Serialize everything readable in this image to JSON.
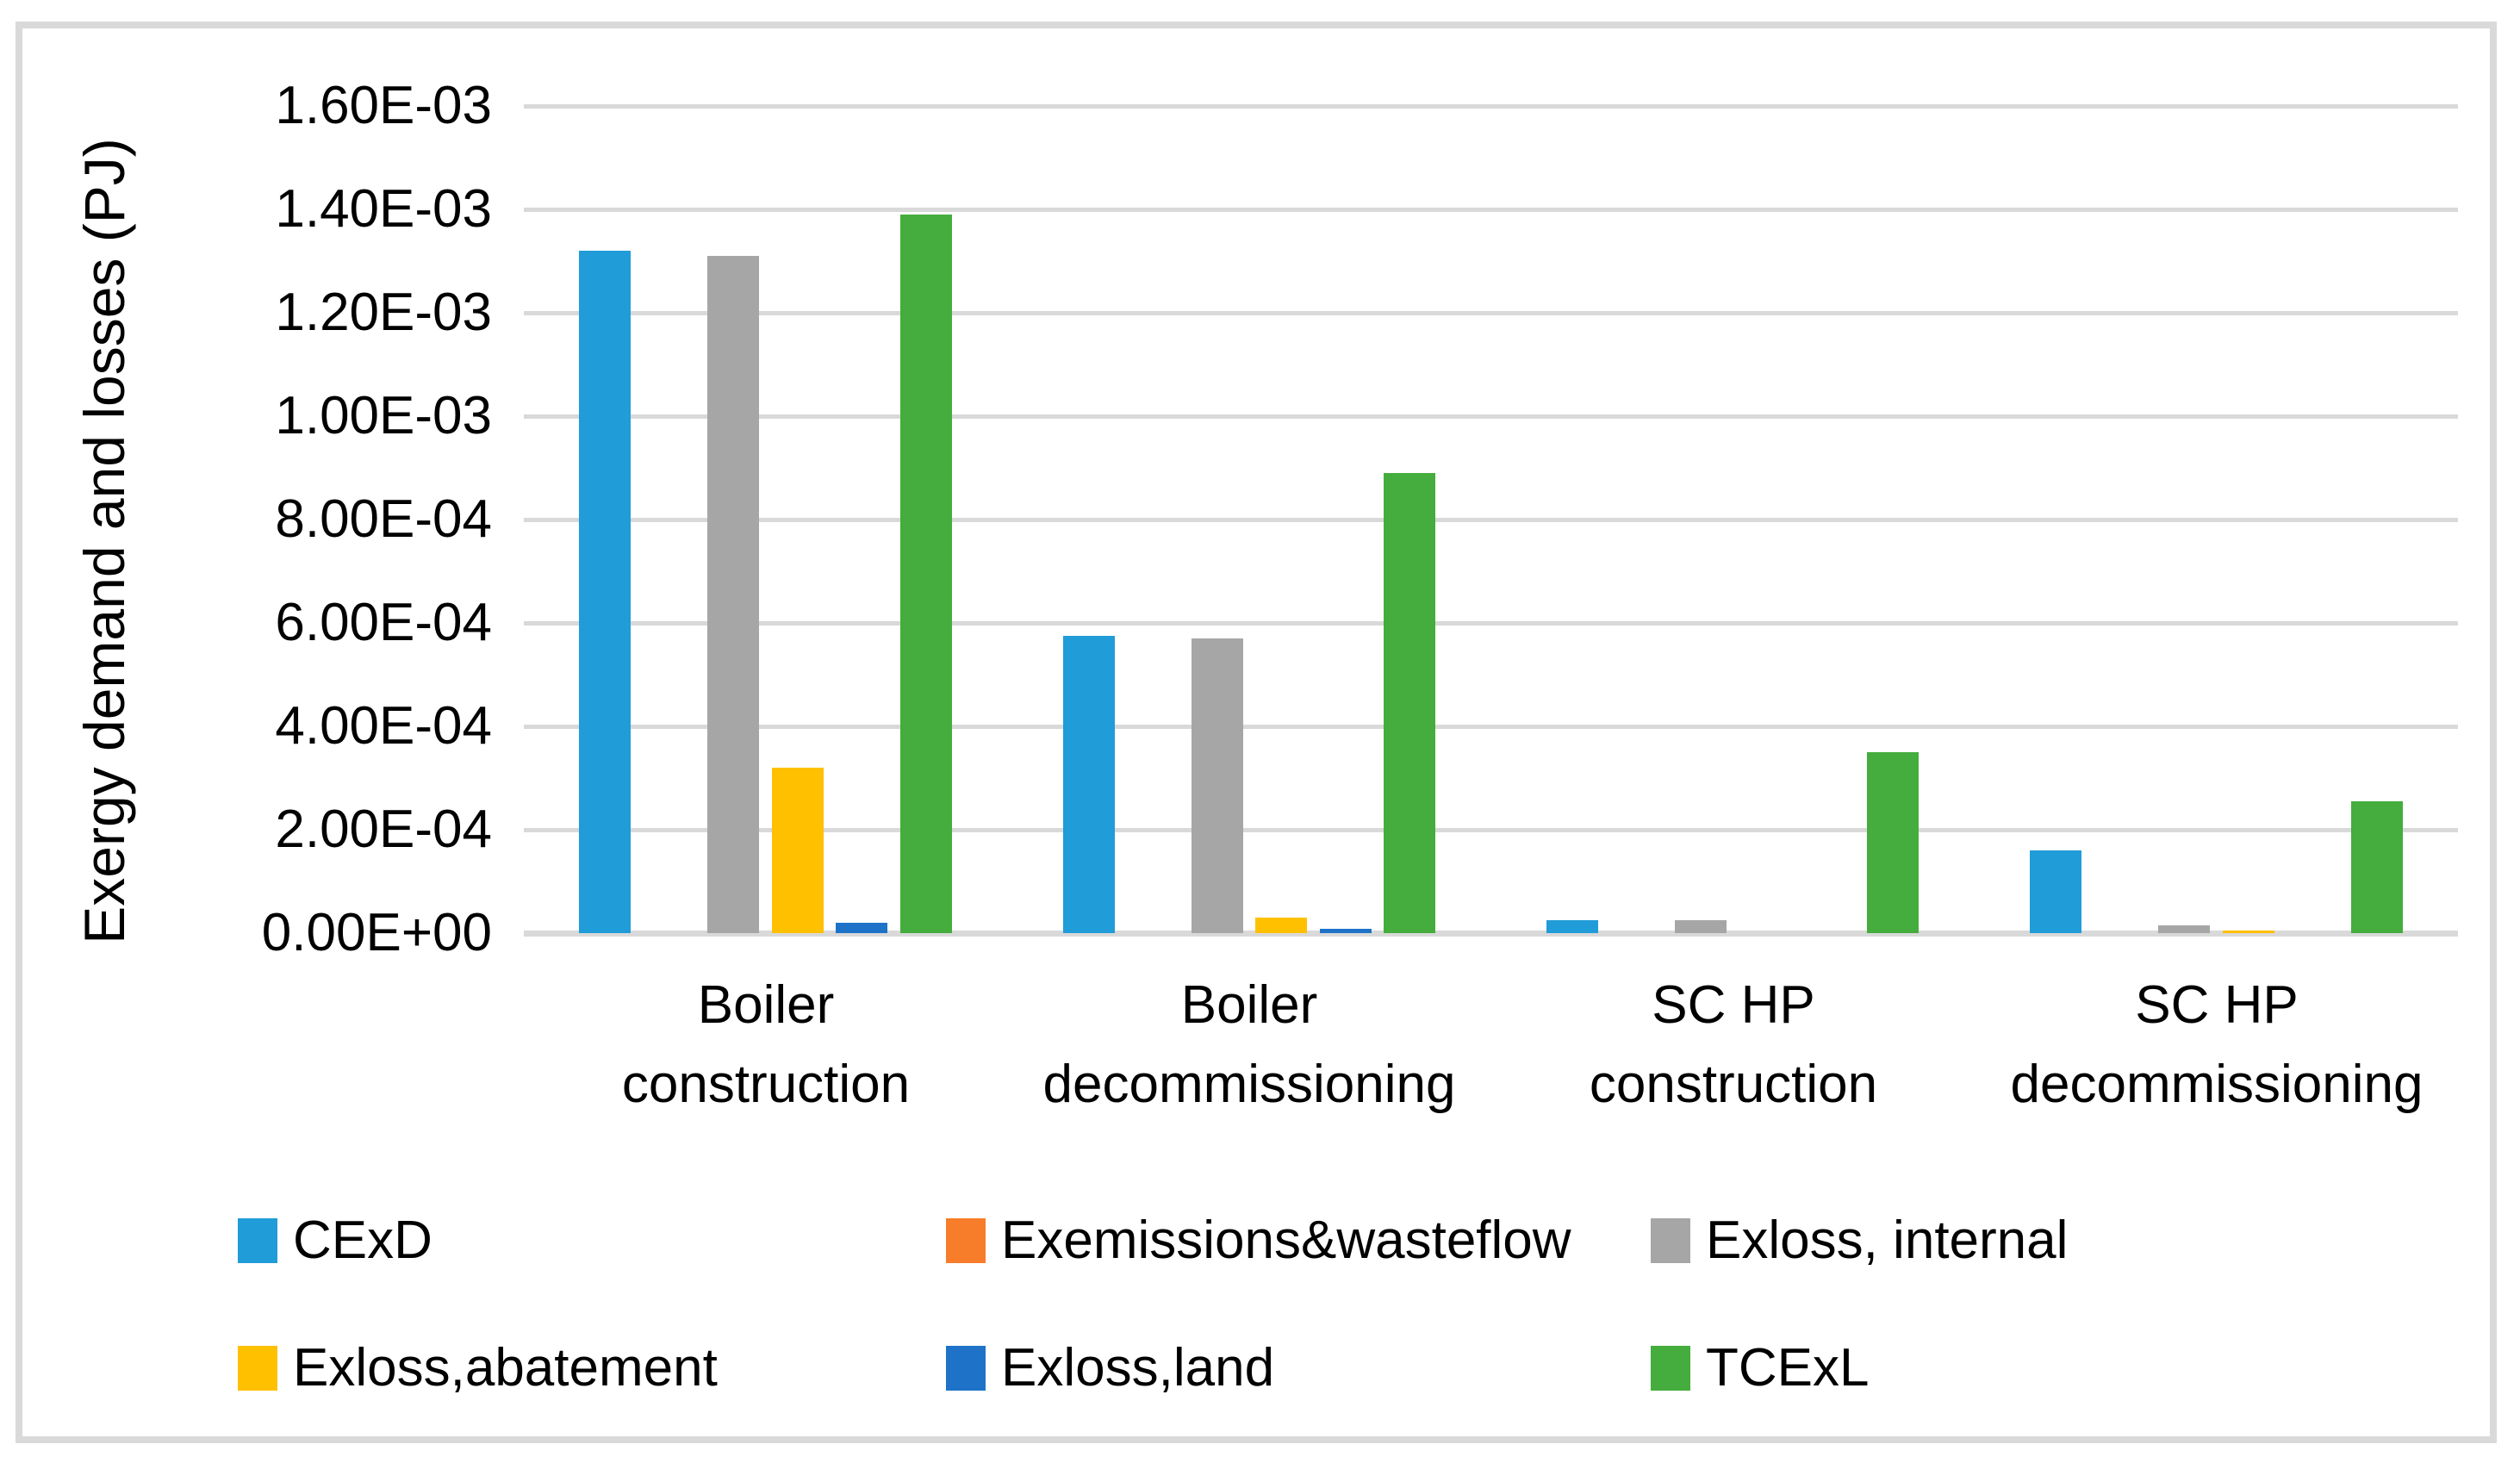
{
  "figure": {
    "background": "#ffffff",
    "border_color": "#d9d9d9"
  },
  "chart_data": {
    "type": "bar",
    "title": "",
    "xlabel": "",
    "ylabel": "Exergy demand and losses (PJ)",
    "ylim": [
      0,
      0.0016
    ],
    "ytick_step": 0.0002,
    "ytick_labels": [
      "0.00E+00",
      "2.00E-04",
      "4.00E-04",
      "6.00E-04",
      "8.00E-04",
      "1.00E-03",
      "1.20E-03",
      "1.40E-03",
      "1.60E-03"
    ],
    "grid": true,
    "gridline_color": "#d9d9d9",
    "legend_position": "bottom",
    "categories": [
      "Boiler construction",
      "Boiler decommissioning",
      "SC HP construction",
      "SC HP decommissioning"
    ],
    "category_lines": [
      [
        "Boiler",
        "construction"
      ],
      [
        "Boiler",
        "decommissioning"
      ],
      [
        "SC HP",
        "construction"
      ],
      [
        "SC HP",
        "decommissioning"
      ]
    ],
    "series": [
      {
        "name": "CExD",
        "color": "#209cd8",
        "values": [
          0.00132,
          0.000575,
          2.5e-05,
          0.00016
        ]
      },
      {
        "name": "Exemissions&wasteflow",
        "color": "#f87d2a",
        "values": [
          0,
          0,
          0,
          0
        ]
      },
      {
        "name": "Exloss, internal",
        "color": "#a6a6a6",
        "values": [
          0.00131,
          0.00057,
          2.5e-05,
          1.5e-05
        ]
      },
      {
        "name": "Exloss,abatement",
        "color": "#ffc000",
        "values": [
          0.00032,
          3e-05,
          0,
          5e-06
        ]
      },
      {
        "name": "Exloss,land",
        "color": "#1e73c8",
        "values": [
          2e-05,
          8e-06,
          0,
          0
        ]
      },
      {
        "name": "TCExL",
        "color": "#44ad3d",
        "values": [
          0.00139,
          0.00089,
          0.00035,
          0.000255
        ]
      }
    ]
  }
}
